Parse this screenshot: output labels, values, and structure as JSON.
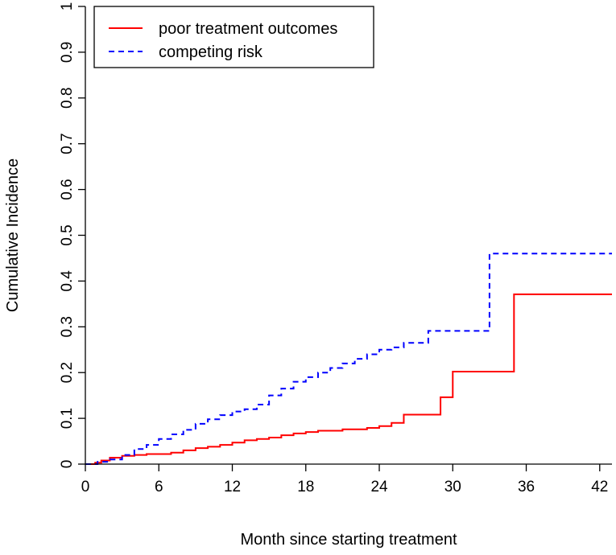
{
  "chart_data": {
    "type": "line",
    "title": "",
    "xlabel": "Month since starting treatment",
    "ylabel": "Cumulative Incidence",
    "xlim": [
      0,
      43
    ],
    "ylim": [
      0,
      1
    ],
    "xticks": [
      0,
      6,
      12,
      18,
      24,
      30,
      36,
      42
    ],
    "yticks": [
      0,
      0.1,
      0.2,
      0.3,
      0.4,
      0.5,
      0.6,
      0.7,
      0.8,
      0.9,
      1
    ],
    "x_tick_labels": [
      "0",
      "6",
      "12",
      "18",
      "24",
      "30",
      "36",
      "42"
    ],
    "y_tick_labels": [
      "0",
      "0.1",
      "0.2",
      "0.3",
      "0.4",
      "0.5",
      "0.6",
      "0.7",
      "0.8",
      "0.9",
      "1"
    ],
    "legend_position": "top-left",
    "step": true,
    "series": [
      {
        "name": "poor treatment outcomes",
        "color": "#ff0000",
        "style": "solid",
        "x": [
          0,
          0.8,
          1.3,
          2,
          3,
          4,
          5,
          7,
          8,
          9,
          10,
          11,
          12,
          13,
          14,
          15,
          16,
          17,
          18,
          19,
          21,
          23,
          24,
          25,
          26,
          29,
          30,
          35,
          43
        ],
        "values": [
          0,
          0.003,
          0.008,
          0.014,
          0.018,
          0.02,
          0.022,
          0.025,
          0.03,
          0.035,
          0.038,
          0.042,
          0.047,
          0.052,
          0.055,
          0.058,
          0.063,
          0.067,
          0.07,
          0.073,
          0.076,
          0.079,
          0.083,
          0.09,
          0.108,
          0.146,
          0.202,
          0.371,
          0.371
        ]
      },
      {
        "name": "competing risk",
        "color": "#0000ff",
        "style": "dashed",
        "x": [
          0,
          1,
          2,
          3,
          4,
          5,
          6,
          7,
          8,
          9,
          10,
          11,
          12,
          13,
          14,
          15,
          16,
          17,
          18,
          19,
          20,
          21,
          22,
          23,
          24,
          25,
          26,
          28,
          33,
          43
        ],
        "values": [
          0,
          0.005,
          0.01,
          0.02,
          0.033,
          0.042,
          0.055,
          0.065,
          0.075,
          0.088,
          0.098,
          0.107,
          0.115,
          0.12,
          0.13,
          0.15,
          0.165,
          0.18,
          0.19,
          0.2,
          0.21,
          0.22,
          0.23,
          0.24,
          0.25,
          0.255,
          0.265,
          0.291,
          0.46,
          0.46
        ]
      }
    ]
  }
}
